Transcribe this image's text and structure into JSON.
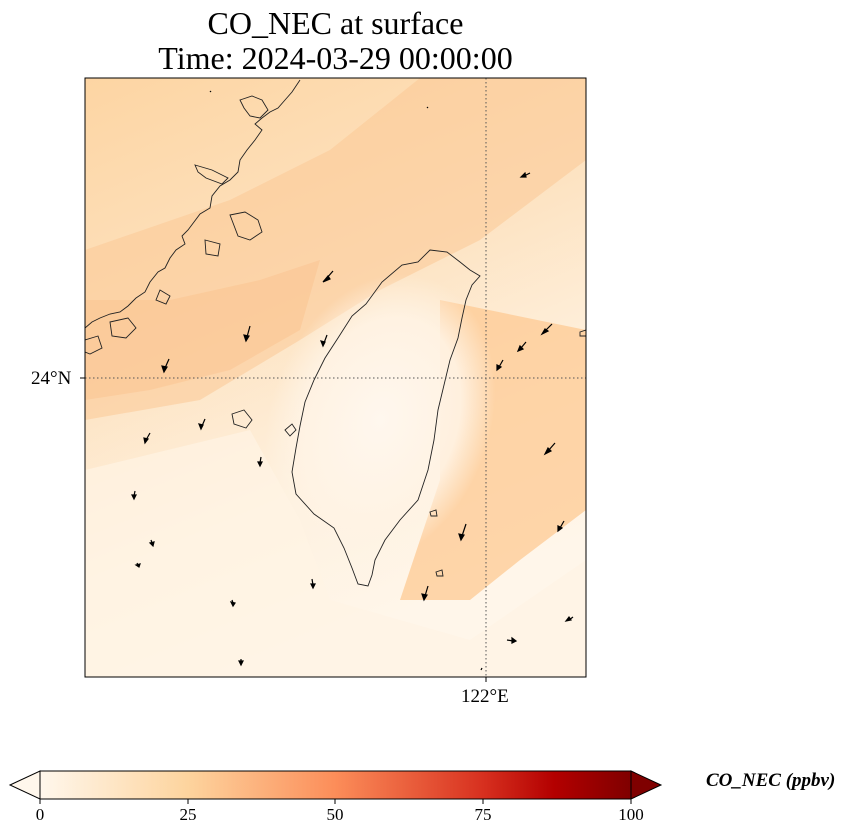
{
  "title": {
    "line1": "CO_NEC at surface",
    "line2": "Time: 2024-03-29 00:00:00"
  },
  "axes": {
    "lat_label": "24°N",
    "lon_label": "122°E"
  },
  "colorbar": {
    "label": "CO_NEC (ppbv)",
    "ticks": [
      "0",
      "25",
      "50",
      "75",
      "100"
    ],
    "range": [
      0,
      100
    ],
    "extend": "both",
    "colormap": "Oranges-to-dark-red",
    "colors": [
      "#fff7ec",
      "#fdd49e",
      "#fc8d59",
      "#d7301f",
      "#7f0000"
    ]
  },
  "map": {
    "gridlines": "dotted",
    "coastline_color": "#000000",
    "wind_vectors": "black arrows"
  }
}
